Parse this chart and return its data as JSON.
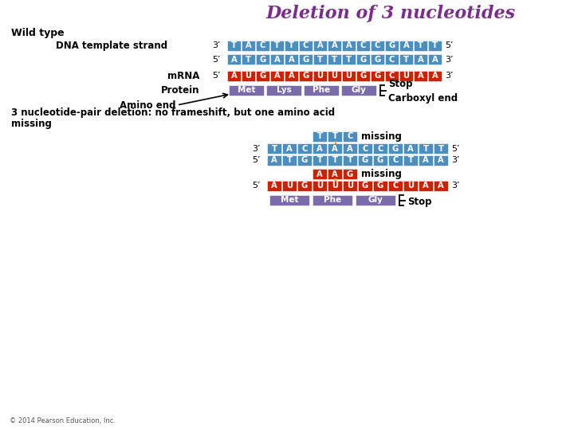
{
  "title": "Deletion of 3 nucleotides",
  "title_color": "#7B2D8B",
  "title_fontsize": 16,
  "bg_color": "#FFFFFF",
  "blue_color": "#4A8FC0",
  "red_color": "#CC2200",
  "purple_color": "#7B6BAA",
  "white": "#FFFFFF",
  "black": "#000000",
  "wt_dna_strand1_seq": [
    "T",
    "A",
    "C",
    "T",
    "T",
    "C",
    "A",
    "A",
    "A",
    "C",
    "C",
    "G",
    "A",
    "T",
    "T"
  ],
  "wt_dna_strand2_seq": [
    "A",
    "T",
    "G",
    "A",
    "A",
    "G",
    "T",
    "T",
    "T",
    "G",
    "G",
    "C",
    "T",
    "A",
    "A"
  ],
  "wt_mrna_seq": [
    "A",
    "U",
    "G",
    "A",
    "A",
    "G",
    "U",
    "U",
    "U",
    "G",
    "G",
    "C",
    "U",
    "A",
    "A"
  ],
  "wt_protein_labels": [
    "Met",
    "Lys",
    "Phe",
    "Gly"
  ],
  "del_ttc_seq": [
    "T",
    "T",
    "C"
  ],
  "del_dna_strand1_seq": [
    "T",
    "A",
    "C",
    "A",
    "A",
    "A",
    "C",
    "C",
    "G",
    "A",
    "T",
    "T"
  ],
  "del_dna_strand2_seq": [
    "A",
    "T",
    "G",
    "T",
    "T",
    "T",
    "G",
    "G",
    "C",
    "T",
    "A",
    "A"
  ],
  "del_aag_seq": [
    "A",
    "A",
    "G"
  ],
  "del_mrna_seq": [
    "A",
    "U",
    "G",
    "U",
    "U",
    "U",
    "G",
    "G",
    "C",
    "U",
    "A",
    "A"
  ],
  "del_protein_labels": [
    "Met",
    "Phe",
    "Gly"
  ],
  "footer": "© 2014 Pearson Education, Inc."
}
